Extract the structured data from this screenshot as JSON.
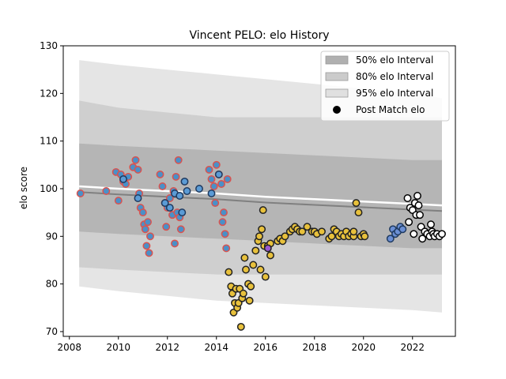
{
  "chart_data": {
    "type": "scatter",
    "title": "Vincent PELO: elo History",
    "xlabel": "",
    "ylabel": "elo score",
    "xlim": [
      2007.75,
      2023.75
    ],
    "ylim": [
      69,
      130
    ],
    "xticks": [
      2008,
      2010,
      2012,
      2014,
      2016,
      2018,
      2020,
      2022
    ],
    "yticks": [
      70,
      80,
      90,
      100,
      110,
      120,
      130
    ],
    "grid": false,
    "legend_position": "top-right",
    "legend": [
      {
        "label": "50% elo Interval",
        "kind": "band",
        "color": "#b0b0b0"
      },
      {
        "label": "80% elo Interval",
        "kind": "band",
        "color": "#cbcbcb"
      },
      {
        "label": "95% elo Interval",
        "kind": "band",
        "color": "#e0e0e0"
      },
      {
        "label": "Post Match elo",
        "kind": "marker",
        "color": "#000000"
      }
    ],
    "intervals": {
      "x": [
        2008.4,
        2010.0,
        2012.0,
        2014.0,
        2016.0,
        2018.0,
        2020.0,
        2022.0,
        2023.2
      ],
      "center": [
        100.5,
        100.0,
        99.5,
        99.0,
        98.3,
        97.8,
        97.3,
        96.8,
        96.5
      ],
      "band95": {
        "lower": [
          79.5,
          78.5,
          77.5,
          76.5,
          76.0,
          75.5,
          75.0,
          74.5,
          74.0
        ],
        "upper": [
          127.0,
          126.0,
          125.0,
          124.0,
          123.0,
          122.0,
          121.0,
          120.0,
          119.0
        ]
      },
      "band80": {
        "lower": [
          83.5,
          83.0,
          82.5,
          82.0,
          82.0,
          82.0,
          82.0,
          82.0,
          82.0
        ],
        "upper": [
          118.5,
          117.0,
          116.0,
          115.0,
          115.0,
          115.0,
          115.0,
          115.0,
          115.0
        ]
      },
      "band50": {
        "lower": [
          91.0,
          90.5,
          90.0,
          89.5,
          89.0,
          88.5,
          88.0,
          87.5,
          87.5
        ],
        "upper": [
          109.5,
          109.0,
          108.5,
          108.0,
          107.5,
          107.0,
          106.5,
          106.0,
          106.0
        ]
      },
      "center_color": "#ffffff",
      "center_dark_color": "#808080"
    },
    "series": [
      {
        "fill": "#4a90c8",
        "edge": "#d9534f",
        "x": [
          2008.45,
          2009.5,
          2009.9,
          2010.0,
          2010.1,
          2010.2,
          2010.3,
          2010.4,
          2010.6,
          2010.7,
          2010.8,
          2010.85,
          2010.9,
          2011.0,
          2011.05,
          2011.1,
          2011.15,
          2011.2,
          2011.25,
          2011.3,
          2011.7,
          2011.8,
          2011.9,
          2011.95,
          2012.0,
          2012.1,
          2012.2,
          2012.25,
          2012.3,
          2012.35,
          2012.4,
          2012.45,
          2012.5,
          2012.55,
          2013.7,
          2013.8,
          2013.9,
          2013.95,
          2014.0,
          2014.1,
          2014.2,
          2014.25,
          2014.3,
          2014.35,
          2014.4,
          2014.45
        ],
        "y": [
          99.0,
          99.5,
          103.5,
          97.5,
          103.0,
          101.5,
          101.0,
          102.5,
          104.5,
          106.0,
          104.0,
          99.0,
          96.0,
          95.0,
          92.5,
          91.5,
          88.0,
          93.0,
          86.5,
          90.0,
          103.0,
          100.5,
          97.0,
          92.0,
          96.0,
          98.0,
          94.5,
          99.5,
          88.5,
          102.5,
          95.0,
          106.0,
          94.0,
          91.5,
          104.0,
          102.0,
          100.5,
          97.0,
          105.0,
          103.0,
          101.0,
          93.0,
          95.0,
          90.5,
          87.5,
          102.0
        ]
      },
      {
        "fill": "#5b9bd5",
        "edge": "#1f3a5f",
        "x": [
          2010.2,
          2010.8,
          2011.9,
          2012.1,
          2012.3,
          2012.5,
          2012.6,
          2012.7,
          2012.8,
          2013.3,
          2013.8,
          2014.1
        ],
        "y": [
          102.0,
          98.0,
          97.0,
          96.0,
          99.0,
          98.5,
          95.0,
          101.5,
          99.5,
          100.0,
          99.0,
          103.0
        ]
      },
      {
        "fill": "#e8c13c",
        "edge": "#222222",
        "x": [
          2014.5,
          2014.6,
          2014.65,
          2014.7,
          2014.75,
          2014.8,
          2014.85,
          2014.9,
          2014.95,
          2015.0,
          2015.05,
          2015.1,
          2015.15,
          2015.2,
          2015.3,
          2015.35,
          2015.4,
          2015.5,
          2015.6,
          2015.7,
          2015.75,
          2015.8,
          2015.85,
          2015.9,
          2015.95,
          2016.0,
          2016.1,
          2016.2,
          2016.5,
          2016.6,
          2016.7,
          2016.8,
          2017.0,
          2017.1,
          2017.2,
          2017.3,
          2017.4,
          2017.5,
          2017.7,
          2017.9,
          2018.0,
          2018.1,
          2018.3,
          2018.6,
          2018.7,
          2018.8,
          2018.9,
          2019.0,
          2019.1,
          2019.2,
          2019.3,
          2019.4,
          2019.5,
          2019.6,
          2019.7,
          2019.8,
          2019.9,
          2020.0,
          2020.05,
          2016.2,
          2019.6
        ],
        "y": [
          82.5,
          79.5,
          78.0,
          74.0,
          76.0,
          79.0,
          75.0,
          76.0,
          79.0,
          71.0,
          77.0,
          78.0,
          85.5,
          83.0,
          80.0,
          76.5,
          79.5,
          84.0,
          87.0,
          89.0,
          90.0,
          83.0,
          91.5,
          95.5,
          88.0,
          81.5,
          88.0,
          86.0,
          89.0,
          89.5,
          89.0,
          90.0,
          91.0,
          91.5,
          92.0,
          91.5,
          91.0,
          91.0,
          92.0,
          91.0,
          91.0,
          90.5,
          91.0,
          89.5,
          90.0,
          91.5,
          91.0,
          90.0,
          90.5,
          90.0,
          91.0,
          90.0,
          90.5,
          90.0,
          97.0,
          95.0,
          90.0,
          90.5,
          90.0,
          88.5,
          91.0
        ]
      },
      {
        "fill": "#9b59d0",
        "edge": "#222222",
        "x": [
          2016.1
        ],
        "y": [
          87.5
        ]
      },
      {
        "fill": "#6b8fd4",
        "edge": "#1f3a5f",
        "x": [
          2021.1,
          2021.2,
          2021.3,
          2021.4,
          2021.5,
          2021.6
        ],
        "y": [
          89.5,
          91.5,
          90.5,
          91.0,
          92.0,
          91.5
        ]
      },
      {
        "fill": "#ffffff",
        "edge": "#000000",
        "x": [
          2021.8,
          2021.9,
          2022.0,
          2022.1,
          2022.15,
          2022.2,
          2022.25,
          2022.3,
          2022.35,
          2022.4,
          2022.5,
          2022.6,
          2022.7,
          2022.75,
          2022.8,
          2022.85,
          2022.9,
          2023.0,
          2023.1,
          2023.2,
          2021.85,
          2022.05
        ],
        "y": [
          98.0,
          96.0,
          95.5,
          97.0,
          94.5,
          98.5,
          96.5,
          94.5,
          92.0,
          89.5,
          91.0,
          90.5,
          90.0,
          92.5,
          91.0,
          90.5,
          90.0,
          90.5,
          90.0,
          90.5,
          93.0,
          90.5
        ]
      }
    ]
  }
}
